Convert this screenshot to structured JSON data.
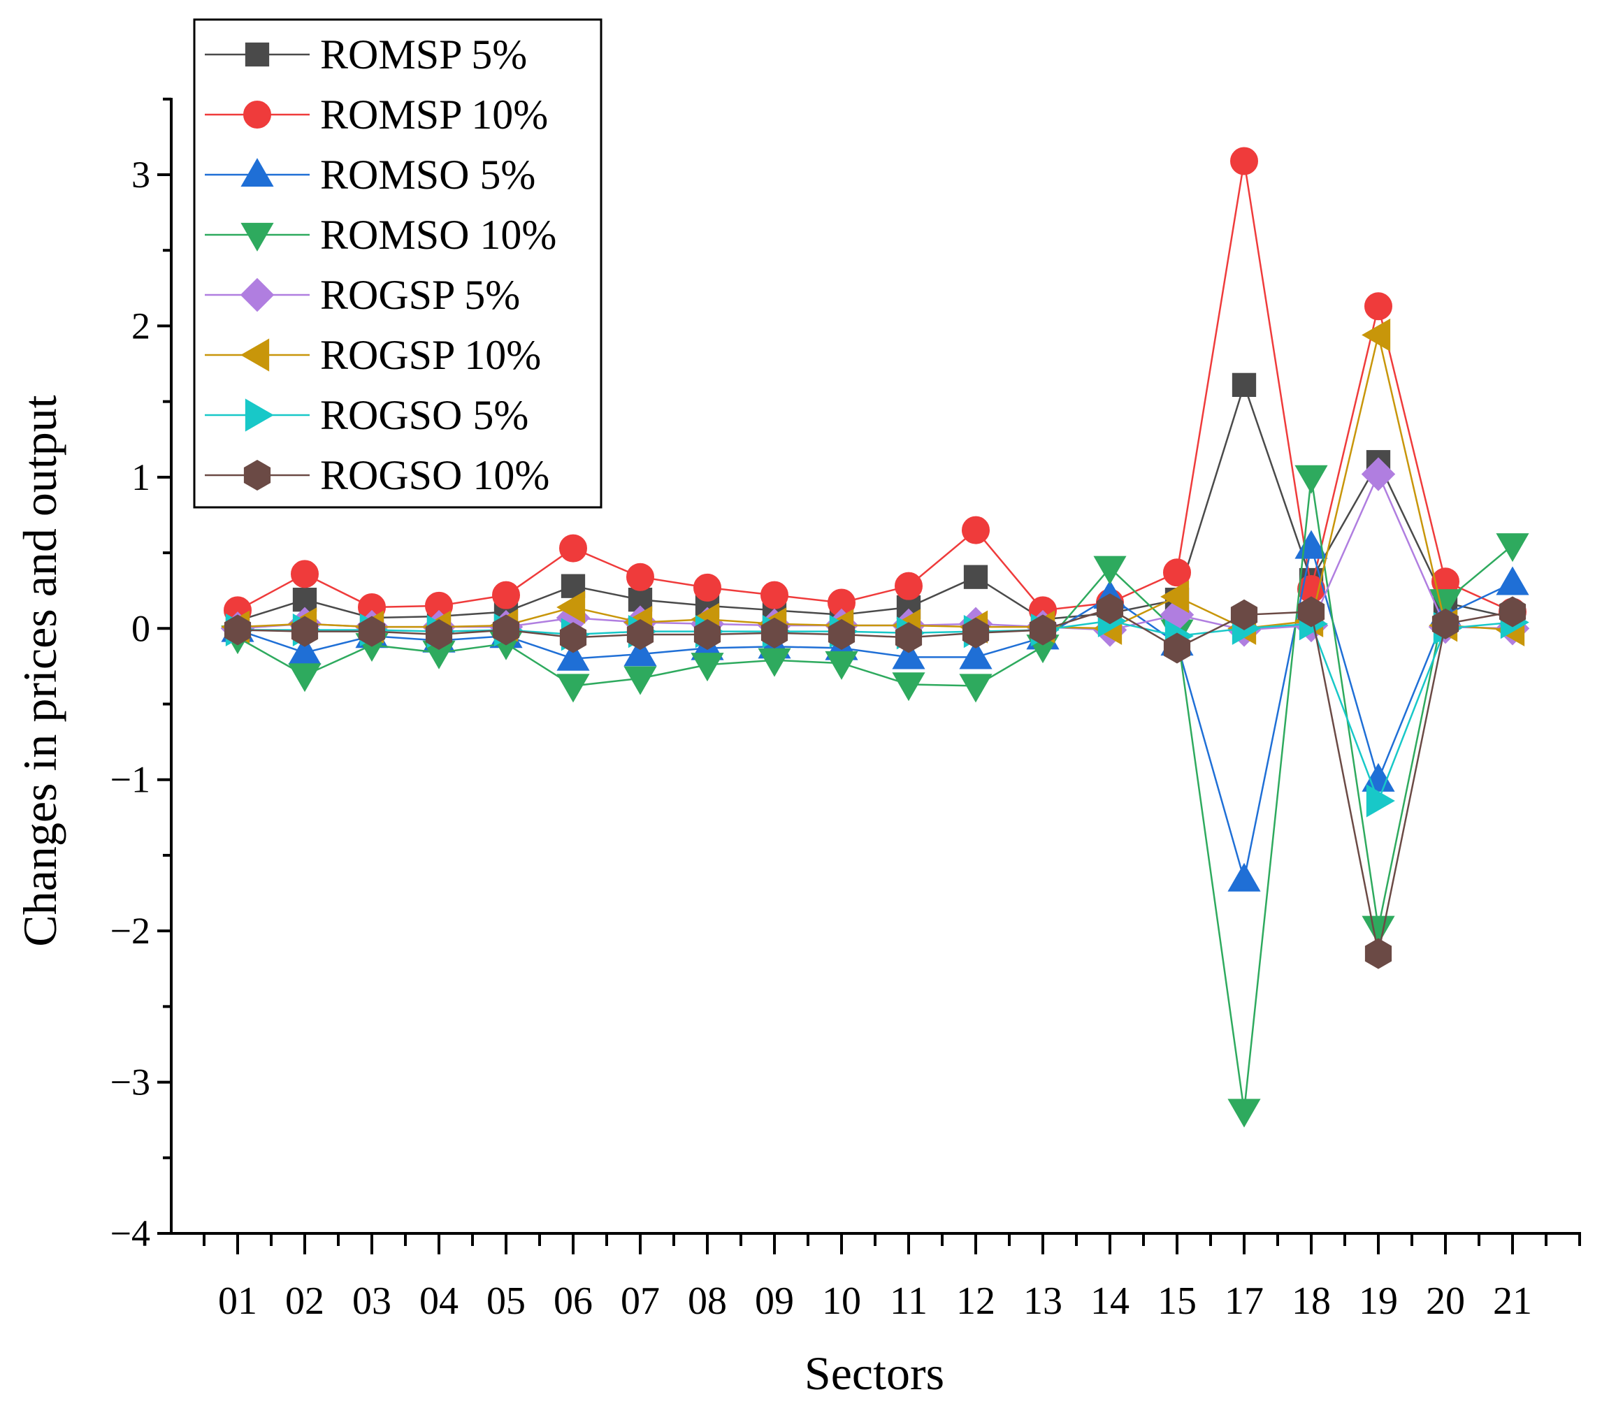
{
  "chart_data": {
    "type": "line",
    "title": "",
    "xlabel": "Sectors",
    "ylabel": "Changes in prices and output",
    "ylim": [
      -4,
      3.5
    ],
    "yticks": [
      -4,
      -3,
      -2,
      -1,
      0,
      1,
      2,
      3
    ],
    "ytick_labels": [
      "−4",
      "−3",
      "−2",
      "−1",
      "0",
      "1",
      "2",
      "3"
    ],
    "categories": [
      "01",
      "02",
      "03",
      "04",
      "05",
      "06",
      "07",
      "08",
      "09",
      "10",
      "11",
      "12",
      "13",
      "14",
      "15",
      "17",
      "18",
      "19",
      "20",
      "21"
    ],
    "legend_position": "top-left",
    "series": [
      {
        "name": "ROMSP 5%",
        "marker": "square",
        "color": "#4a4a4a",
        "values": [
          0.05,
          0.19,
          0.07,
          0.08,
          0.11,
          0.28,
          0.19,
          0.15,
          0.12,
          0.09,
          0.14,
          0.34,
          0.06,
          0.1,
          0.19,
          1.61,
          0.32,
          1.1,
          0.17,
          0.07
        ]
      },
      {
        "name": "ROMSP 10%",
        "marker": "circle",
        "color": "#ef3b3b",
        "values": [
          0.12,
          0.36,
          0.14,
          0.15,
          0.22,
          0.53,
          0.34,
          0.27,
          0.22,
          0.17,
          0.28,
          0.65,
          0.12,
          0.17,
          0.37,
          3.09,
          0.26,
          2.13,
          0.31,
          0.11
        ]
      },
      {
        "name": "ROMSO 5%",
        "marker": "triangle-up",
        "color": "#1f6fd6",
        "values": [
          -0.01,
          -0.16,
          -0.05,
          -0.08,
          -0.05,
          -0.2,
          -0.17,
          -0.13,
          -0.12,
          -0.13,
          -0.19,
          -0.19,
          -0.06,
          0.21,
          -0.1,
          -1.66,
          0.54,
          -1.0,
          0.09,
          0.3
        ]
      },
      {
        "name": "ROMSO 10%",
        "marker": "triangle-down",
        "color": "#2eaa5e",
        "values": [
          -0.06,
          -0.31,
          -0.11,
          -0.16,
          -0.1,
          -0.38,
          -0.33,
          -0.24,
          -0.21,
          -0.23,
          -0.37,
          -0.38,
          -0.12,
          0.4,
          -0.02,
          -3.19,
          1.0,
          -1.98,
          0.18,
          0.55
        ]
      },
      {
        "name": "ROGSP 5%",
        "marker": "diamond",
        "color": "#b07ee0",
        "values": [
          0.0,
          0.03,
          0.01,
          0.01,
          0.01,
          0.07,
          0.04,
          0.03,
          0.02,
          0.02,
          0.02,
          0.03,
          0.01,
          -0.01,
          0.09,
          -0.01,
          0.02,
          1.02,
          0.01,
          0.0
        ]
      },
      {
        "name": "ROGSP 10%",
        "marker": "triangle-left",
        "color": "#c8960a",
        "values": [
          0.01,
          0.03,
          0.01,
          0.01,
          0.02,
          0.14,
          0.04,
          0.06,
          0.03,
          0.02,
          0.02,
          0.01,
          0.01,
          0.0,
          0.21,
          0.0,
          0.05,
          1.94,
          0.02,
          -0.01
        ]
      },
      {
        "name": "ROGSO 5%",
        "marker": "triangle-right",
        "color": "#18c8c8",
        "values": [
          -0.01,
          -0.01,
          -0.01,
          -0.02,
          -0.01,
          -0.04,
          -0.02,
          -0.02,
          -0.02,
          -0.02,
          -0.03,
          -0.02,
          -0.01,
          0.05,
          -0.05,
          0.0,
          0.03,
          -1.14,
          0.0,
          0.04
        ]
      },
      {
        "name": "ROGSO 10%",
        "marker": "hexagon",
        "color": "#6b4a45",
        "values": [
          -0.01,
          -0.02,
          -0.02,
          -0.04,
          -0.01,
          -0.06,
          -0.04,
          -0.04,
          -0.03,
          -0.04,
          -0.06,
          -0.03,
          -0.01,
          0.13,
          -0.13,
          0.09,
          0.11,
          -2.15,
          0.03,
          0.11
        ]
      }
    ]
  }
}
